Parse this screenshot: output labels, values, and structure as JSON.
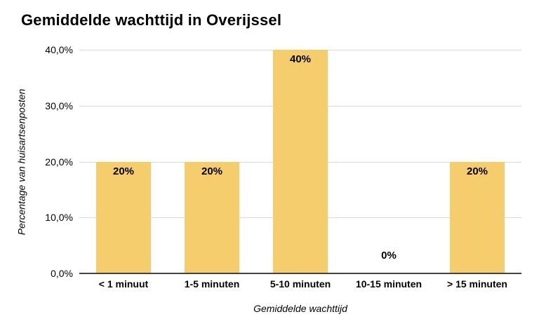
{
  "chart_data": {
    "type": "bar",
    "title": "Gemiddelde wachttijd in Overijssel",
    "xlabel": "Gemiddelde wachttijd",
    "ylabel": "Percentage van huisartsenposten",
    "categories": [
      "< 1 minuut",
      "1-5 minuten",
      "5-10 minuten",
      "10-15 minuten",
      "> 15 minuten"
    ],
    "values": [
      20,
      20,
      40,
      0,
      20
    ],
    "bar_labels": [
      "20%",
      "20%",
      "40%",
      "0%",
      "20%"
    ],
    "ytick_labels": [
      "40,0%",
      "30,0%",
      "20,0%",
      "10,0%",
      "0,0%"
    ],
    "ylim": [
      0,
      40
    ],
    "grid": true,
    "legend": "none",
    "bar_color": "#F6CD6C",
    "gridline_color": "#d9d9d9",
    "axis_line_color": "#424242"
  }
}
